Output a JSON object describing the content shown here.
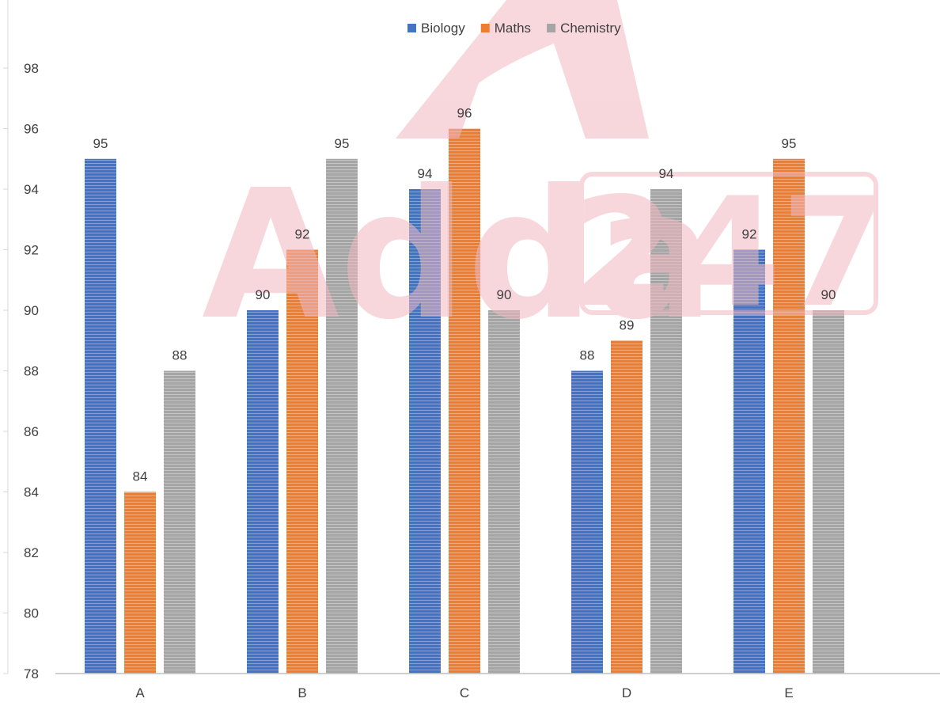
{
  "watermark": {
    "text_left": "Adda",
    "text_box": "247",
    "color": "#f2b8c0"
  },
  "chart_data": {
    "type": "bar",
    "title": "",
    "xlabel": "",
    "ylabel": "",
    "categories": [
      "A",
      "B",
      "C",
      "D",
      "E"
    ],
    "ylim": [
      78,
      98
    ],
    "yticks": [
      78,
      80,
      82,
      84,
      86,
      88,
      90,
      92,
      94,
      96,
      98
    ],
    "legend_position": "top-center",
    "grid": false,
    "series": [
      {
        "name": "Biology",
        "color": "#4472c4",
        "values": [
          95,
          90,
          94,
          88,
          92
        ]
      },
      {
        "name": "Maths",
        "color": "#ed7d31",
        "values": [
          84,
          92,
          96,
          89,
          95
        ]
      },
      {
        "name": "Chemistry",
        "color": "#a5a5a5",
        "values": [
          88,
          95,
          90,
          94,
          90
        ]
      }
    ]
  }
}
